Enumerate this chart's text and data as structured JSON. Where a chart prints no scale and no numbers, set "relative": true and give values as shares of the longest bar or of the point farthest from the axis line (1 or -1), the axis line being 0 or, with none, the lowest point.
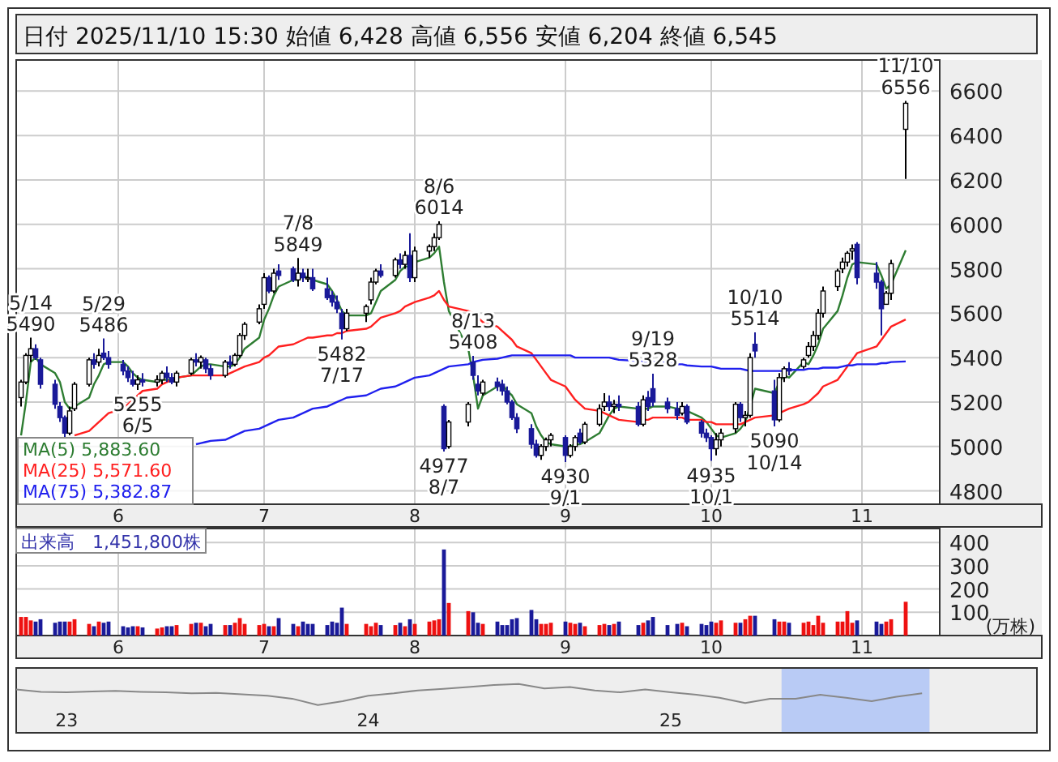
{
  "chart_data": [
    {
      "type": "candlestick",
      "title": "日付 2025/11/10 15:30 始値 6,428 高値 6,556 安値 6,204 終値 6,545",
      "x": [
        "2025-05-12",
        "2025-05-13",
        "2025-05-14",
        "2025-05-15",
        "2025-05-16",
        "2025-05-19",
        "2025-05-20",
        "2025-05-21",
        "2025-05-22",
        "2025-05-23",
        "2025-05-26",
        "2025-05-27",
        "2025-05-28",
        "2025-05-29",
        "2025-05-30",
        "2025-06-02",
        "2025-06-03",
        "2025-06-04",
        "2025-06-05",
        "2025-06-06",
        "2025-06-09",
        "2025-06-10",
        "2025-06-11",
        "2025-06-12",
        "2025-06-13",
        "2025-06-16",
        "2025-06-17",
        "2025-06-18",
        "2025-06-19",
        "2025-06-20",
        "2025-06-23",
        "2025-06-24",
        "2025-06-25",
        "2025-06-26",
        "2025-06-27",
        "2025-06-30",
        "2025-07-01",
        "2025-07-02",
        "2025-07-03",
        "2025-07-04",
        "2025-07-07",
        "2025-07-08",
        "2025-07-09",
        "2025-07-10",
        "2025-07-11",
        "2025-07-14",
        "2025-07-15",
        "2025-07-16",
        "2025-07-17",
        "2025-07-18",
        "2025-07-22",
        "2025-07-23",
        "2025-07-24",
        "2025-07-25",
        "2025-07-28",
        "2025-07-29",
        "2025-07-30",
        "2025-07-31",
        "2025-08-01",
        "2025-08-04",
        "2025-08-05",
        "2025-08-06",
        "2025-08-07",
        "2025-08-08",
        "2025-08-12",
        "2025-08-13",
        "2025-08-14",
        "2025-08-15",
        "2025-08-18",
        "2025-08-19",
        "2025-08-20",
        "2025-08-21",
        "2025-08-22",
        "2025-08-25",
        "2025-08-26",
        "2025-08-27",
        "2025-08-28",
        "2025-08-29",
        "2025-09-01",
        "2025-09-02",
        "2025-09-03",
        "2025-09-04",
        "2025-09-05",
        "2025-09-08",
        "2025-09-09",
        "2025-09-10",
        "2025-09-11",
        "2025-09-12",
        "2025-09-16",
        "2025-09-17",
        "2025-09-18",
        "2025-09-19",
        "2025-09-22",
        "2025-09-24",
        "2025-09-25",
        "2025-09-26",
        "2025-09-29",
        "2025-09-30",
        "2025-10-01",
        "2025-10-02",
        "2025-10-03",
        "2025-10-06",
        "2025-10-07",
        "2025-10-08",
        "2025-10-09",
        "2025-10-10",
        "2025-10-14",
        "2025-10-15",
        "2025-10-16",
        "2025-10-17",
        "2025-10-20",
        "2025-10-21",
        "2025-10-22",
        "2025-10-23",
        "2025-10-24",
        "2025-10-27",
        "2025-10-28",
        "2025-10-29",
        "2025-10-30",
        "2025-10-31",
        "2025-11-04",
        "2025-11-05",
        "2025-11-06",
        "2025-11-07",
        "2025-11-10"
      ],
      "ohlc": [
        [
          5220,
          5300,
          5180,
          5290
        ],
        [
          5290,
          5420,
          5280,
          5410
        ],
        [
          5410,
          5490,
          5380,
          5440
        ],
        [
          5440,
          5460,
          5390,
          5400
        ],
        [
          5390,
          5400,
          5260,
          5280
        ],
        [
          5280,
          5300,
          5170,
          5190
        ],
        [
          5180,
          5200,
          5110,
          5130
        ],
        [
          5130,
          5140,
          5040,
          5060
        ],
        [
          5060,
          5180,
          5050,
          5160
        ],
        [
          5170,
          5290,
          5160,
          5280
        ],
        [
          5280,
          5400,
          5270,
          5390
        ],
        [
          5390,
          5420,
          5350,
          5370
        ],
        [
          5380,
          5440,
          5360,
          5410
        ],
        [
          5420,
          5486,
          5390,
          5400
        ],
        [
          5400,
          5430,
          5350,
          5370
        ],
        [
          5370,
          5390,
          5320,
          5340
        ],
        [
          5340,
          5360,
          5290,
          5310
        ],
        [
          5300,
          5340,
          5270,
          5280
        ],
        [
          5280,
          5320,
          5255,
          5300
        ],
        [
          5300,
          5330,
          5270,
          5290
        ],
        [
          5290,
          5320,
          5270,
          5300
        ],
        [
          5300,
          5340,
          5280,
          5330
        ],
        [
          5330,
          5360,
          5290,
          5310
        ],
        [
          5310,
          5330,
          5280,
          5290
        ],
        [
          5290,
          5340,
          5270,
          5330
        ],
        [
          5330,
          5400,
          5320,
          5390
        ],
        [
          5390,
          5420,
          5360,
          5380
        ],
        [
          5380,
          5410,
          5350,
          5400
        ],
        [
          5390,
          5400,
          5330,
          5350
        ],
        [
          5350,
          5370,
          5300,
          5320
        ],
        [
          5320,
          5390,
          5310,
          5380
        ],
        [
          5380,
          5410,
          5350,
          5370
        ],
        [
          5370,
          5420,
          5360,
          5410
        ],
        [
          5410,
          5510,
          5400,
          5500
        ],
        [
          5500,
          5560,
          5480,
          5550
        ],
        [
          5560,
          5640,
          5550,
          5620
        ],
        [
          5640,
          5780,
          5620,
          5760
        ],
        [
          5760,
          5770,
          5690,
          5700
        ],
        [
          5700,
          5800,
          5690,
          5780
        ],
        [
          5790,
          5820,
          5750,
          5770
        ],
        [
          5800,
          5810,
          5740,
          5750
        ],
        [
          5750,
          5849,
          5720,
          5780
        ],
        [
          5780,
          5800,
          5740,
          5760
        ],
        [
          5760,
          5800,
          5740,
          5760
        ],
        [
          5760,
          5800,
          5700,
          5710
        ],
        [
          5710,
          5760,
          5660,
          5670
        ],
        [
          5680,
          5700,
          5630,
          5650
        ],
        [
          5650,
          5680,
          5600,
          5620
        ],
        [
          5600,
          5620,
          5482,
          5530
        ],
        [
          5530,
          5620,
          5520,
          5600
        ],
        [
          5600,
          5640,
          5560,
          5630
        ],
        [
          5660,
          5760,
          5640,
          5740
        ],
        [
          5740,
          5800,
          5730,
          5790
        ],
        [
          5790,
          5820,
          5760,
          5770
        ],
        [
          5770,
          5850,
          5760,
          5840
        ],
        [
          5840,
          5870,
          5800,
          5820
        ],
        [
          5820,
          5880,
          5800,
          5860
        ],
        [
          5860,
          5960,
          5740,
          5760
        ],
        [
          5760,
          5900,
          5740,
          5880
        ],
        [
          5880,
          5910,
          5850,
          5900
        ],
        [
          5900,
          5960,
          5880,
          5940
        ],
        [
          5940,
          6014,
          5930,
          6000
        ],
        [
          5180,
          5190,
          4977,
          4990
        ],
        [
          5000,
          5120,
          4990,
          5110
        ],
        [
          5110,
          5200,
          5090,
          5190
        ],
        [
          5380,
          5408,
          5300,
          5320
        ],
        [
          5280,
          5320,
          5230,
          5250
        ],
        [
          5240,
          5300,
          5230,
          5290
        ],
        [
          5290,
          5310,
          5250,
          5270
        ],
        [
          5280,
          5300,
          5230,
          5250
        ],
        [
          5250,
          5270,
          5190,
          5200
        ],
        [
          5200,
          5210,
          5120,
          5130
        ],
        [
          5130,
          5150,
          5060,
          5080
        ],
        [
          5080,
          5100,
          4990,
          5010
        ],
        [
          5010,
          5030,
          4950,
          4960
        ],
        [
          4960,
          5010,
          4940,
          5000
        ],
        [
          5000,
          5040,
          4980,
          5030
        ],
        [
          5030,
          5060,
          5000,
          5050
        ],
        [
          5040,
          5050,
          4930,
          4960
        ],
        [
          4960,
          5010,
          4950,
          5000
        ],
        [
          5000,
          5050,
          4980,
          5040
        ],
        [
          5060,
          5080,
          5010,
          5020
        ],
        [
          5020,
          5110,
          5010,
          5100
        ],
        [
          5100,
          5190,
          5090,
          5170
        ],
        [
          5180,
          5240,
          5160,
          5200
        ],
        [
          5200,
          5230,
          5160,
          5180
        ],
        [
          5180,
          5210,
          5150,
          5190
        ],
        [
          5190,
          5230,
          5160,
          5180
        ],
        [
          5180,
          5200,
          5090,
          5100
        ],
        [
          5100,
          5230,
          5090,
          5210
        ],
        [
          5220,
          5250,
          5160,
          5180
        ],
        [
          5260,
          5328,
          5180,
          5200
        ],
        [
          5200,
          5220,
          5150,
          5170
        ],
        [
          5170,
          5200,
          5120,
          5140
        ],
        [
          5150,
          5200,
          5140,
          5180
        ],
        [
          5180,
          5190,
          5100,
          5110
        ],
        [
          5110,
          5120,
          5040,
          5060
        ],
        [
          5060,
          5080,
          5020,
          5040
        ],
        [
          5040,
          5050,
          4935,
          4990
        ],
        [
          4990,
          5060,
          4960,
          5030
        ],
        [
          5030,
          5080,
          5000,
          5060
        ],
        [
          5080,
          5200,
          5060,
          5190
        ],
        [
          5190,
          5200,
          5110,
          5130
        ],
        [
          5130,
          5160,
          5090,
          5140
        ],
        [
          5140,
          5420,
          5130,
          5400
        ],
        [
          5460,
          5514,
          5400,
          5430
        ],
        [
          5250,
          5300,
          5090,
          5120
        ],
        [
          5120,
          5330,
          5110,
          5310
        ],
        [
          5310,
          5360,
          5290,
          5350
        ],
        [
          5350,
          5380,
          5320,
          5340
        ],
        [
          5360,
          5400,
          5350,
          5390
        ],
        [
          5410,
          5470,
          5400,
          5450
        ],
        [
          5450,
          5520,
          5430,
          5500
        ],
        [
          5500,
          5620,
          5480,
          5600
        ],
        [
          5600,
          5720,
          5580,
          5700
        ],
        [
          5720,
          5800,
          5700,
          5790
        ],
        [
          5800,
          5850,
          5780,
          5830
        ],
        [
          5830,
          5880,
          5810,
          5870
        ],
        [
          5880,
          5910,
          5840,
          5890
        ],
        [
          5910,
          5920,
          5730,
          5760
        ],
        [
          5780,
          5830,
          5710,
          5740
        ],
        [
          5740,
          5750,
          5500,
          5620
        ],
        [
          5640,
          5700,
          5640,
          5690
        ],
        [
          5690,
          5840,
          5660,
          5823
        ],
        [
          6428,
          6556,
          6204,
          6545
        ]
      ],
      "series": [
        {
          "name": "MA(5)  5,883.60",
          "type": "line",
          "color": "#2e7d32",
          "values": [
            5050,
            5200,
            5380,
            5400,
            5370,
            5330,
            5290,
            5200,
            5170,
            5180,
            5220,
            5280,
            5320,
            5370,
            5380,
            5380,
            5360,
            5330,
            5310,
            5300,
            5290,
            5300,
            5300,
            5300,
            5310,
            5320,
            5340,
            5360,
            5370,
            5370,
            5360,
            5360,
            5370,
            5400,
            5440,
            5490,
            5570,
            5620,
            5680,
            5720,
            5750,
            5750,
            5770,
            5760,
            5750,
            5730,
            5700,
            5660,
            5610,
            5590,
            5590,
            5600,
            5650,
            5700,
            5750,
            5790,
            5810,
            5810,
            5830,
            5850,
            5870,
            5900,
            5740,
            5610,
            5440,
            5320,
            5170,
            5230,
            5270,
            5280,
            5250,
            5230,
            5190,
            5150,
            5090,
            5050,
            5020,
            5010,
            5000,
            5000,
            5010,
            5010,
            5020,
            5060,
            5100,
            5140,
            5170,
            5180,
            5170,
            5170,
            5170,
            5180,
            5180,
            5170,
            5170,
            5160,
            5130,
            5110,
            5080,
            5050,
            5040,
            5060,
            5080,
            5110,
            5180,
            5260,
            5240,
            5290,
            5320,
            5310,
            5380,
            5370,
            5410,
            5460,
            5530,
            5610,
            5680,
            5760,
            5820,
            5830,
            5820,
            5770,
            5710,
            5730,
            5883.6
          ]
        },
        {
          "name": "MA(25)  5,571.60",
          "type": "line",
          "color": "#ff2020",
          "values": [
            null,
            null,
            null,
            null,
            null,
            null,
            null,
            null,
            null,
            5050,
            5070,
            5090,
            5110,
            5130,
            5150,
            5170,
            5190,
            5210,
            5230,
            5250,
            5260,
            5280,
            5290,
            5300,
            5310,
            5320,
            5320,
            5320,
            5320,
            5320,
            5320,
            5330,
            5340,
            5350,
            5360,
            5380,
            5400,
            5410,
            5430,
            5450,
            5460,
            5470,
            5480,
            5490,
            5490,
            5500,
            5500,
            5510,
            5510,
            5520,
            5530,
            5540,
            5560,
            5580,
            5600,
            5610,
            5630,
            5640,
            5650,
            5670,
            5680,
            5700,
            5660,
            5630,
            5610,
            5600,
            5580,
            5560,
            5540,
            5520,
            5500,
            5480,
            5450,
            5420,
            5390,
            5360,
            5330,
            5300,
            5270,
            5240,
            5210,
            5190,
            5170,
            5160,
            5150,
            5140,
            5130,
            5120,
            5110,
            5120,
            5120,
            5130,
            5130,
            5130,
            5130,
            5120,
            5120,
            5110,
            5110,
            5100,
            5100,
            5100,
            5100,
            5110,
            5120,
            5130,
            5140,
            5150,
            5160,
            5170,
            5190,
            5200,
            5220,
            5240,
            5270,
            5300,
            5330,
            5360,
            5390,
            5420,
            5450,
            5480,
            5510,
            5540,
            5571.6
          ]
        },
        {
          "name": "MA(75)  5,382.87",
          "type": "line",
          "color": "#2020ee",
          "values": [
            null,
            null,
            null,
            null,
            null,
            null,
            null,
            null,
            null,
            null,
            null,
            null,
            null,
            null,
            null,
            null,
            null,
            null,
            null,
            null,
            null,
            null,
            null,
            null,
            null,
            null,
            5010,
            5015,
            5020,
            5025,
            5030,
            5040,
            5050,
            5060,
            5070,
            5080,
            5090,
            5100,
            5110,
            5120,
            5130,
            5140,
            5150,
            5160,
            5170,
            5180,
            5190,
            5200,
            5210,
            5220,
            5230,
            5240,
            5250,
            5260,
            5270,
            5280,
            5290,
            5300,
            5310,
            5320,
            5330,
            5340,
            5350,
            5360,
            5370,
            5380,
            5385,
            5390,
            5395,
            5400,
            5405,
            5410,
            5410,
            5410,
            5410,
            5410,
            5410,
            5410,
            5410,
            5410,
            5400,
            5400,
            5400,
            5400,
            5400,
            5400,
            5395,
            5390,
            5385,
            5380,
            5380,
            5380,
            5375,
            5370,
            5370,
            5365,
            5360,
            5360,
            5360,
            5355,
            5350,
            5350,
            5350,
            5345,
            5340,
            5340,
            5340,
            5340,
            5340,
            5345,
            5345,
            5350,
            5350,
            5350,
            5355,
            5355,
            5360,
            5365,
            5365,
            5370,
            5370,
            5375,
            5375,
            5380,
            5382.87
          ]
        }
      ],
      "xlim": [
        "2025-05-11",
        "2025-11-17"
      ],
      "xticks": [
        {
          "value": "2025-06-01",
          "label": "6"
        },
        {
          "value": "2025-07-01",
          "label": "7"
        },
        {
          "value": "2025-08-01",
          "label": "8"
        },
        {
          "value": "2025-09-01",
          "label": "9"
        },
        {
          "value": "2025-10-01",
          "label": "10"
        },
        {
          "value": "2025-11-01",
          "label": "11"
        }
      ],
      "ylim": [
        4740,
        6740
      ],
      "yticks": [
        4800,
        5000,
        5200,
        5400,
        5600,
        5800,
        6000,
        6200,
        6400,
        6600
      ],
      "grid": true,
      "legend": "bottom left",
      "annotations": [
        {
          "text": "5/14\n5490",
          "x": "2025-05-14",
          "y": 5490
        },
        {
          "text": "5/29\n5486",
          "x": "2025-05-29",
          "y": 5486
        },
        {
          "text": "5255\n6/5",
          "x": "2025-06-05",
          "y": 5255
        },
        {
          "text": "7/8\n5849",
          "x": "2025-07-08",
          "y": 5849
        },
        {
          "text": "5482\n7/17",
          "x": "2025-07-17",
          "y": 5482
        },
        {
          "text": "8/6\n6014",
          "x": "2025-08-06",
          "y": 6014
        },
        {
          "text": "4977\n8/7",
          "x": "2025-08-07",
          "y": 4977
        },
        {
          "text": "8/13\n5408",
          "x": "2025-08-13",
          "y": 5408
        },
        {
          "text": "4930\n9/1",
          "x": "2025-09-01",
          "y": 4930
        },
        {
          "text": "9/19\n5328",
          "x": "2025-09-19",
          "y": 5328
        },
        {
          "text": "4935\n10/1",
          "x": "2025-10-01",
          "y": 4935
        },
        {
          "text": "10/10\n5514",
          "x": "2025-10-10",
          "y": 5514
        },
        {
          "text": "5090\n10/14",
          "x": "2025-10-14",
          "y": 5090
        },
        {
          "text": "11/10\n6556",
          "x": "2025-11-10",
          "y": 6556
        }
      ]
    },
    {
      "type": "bar",
      "title": "出来高　1,451,800株",
      "ylabel": "(万株)",
      "x": [
        "2025-05-12",
        "2025-05-13",
        "2025-05-14",
        "2025-05-15",
        "2025-05-16",
        "2025-05-19",
        "2025-05-20",
        "2025-05-21",
        "2025-05-22",
        "2025-05-23",
        "2025-05-26",
        "2025-05-27",
        "2025-05-28",
        "2025-05-29",
        "2025-05-30",
        "2025-06-02",
        "2025-06-03",
        "2025-06-04",
        "2025-06-05",
        "2025-06-06",
        "2025-06-09",
        "2025-06-10",
        "2025-06-11",
        "2025-06-12",
        "2025-06-13",
        "2025-06-16",
        "2025-06-17",
        "2025-06-18",
        "2025-06-19",
        "2025-06-20",
        "2025-06-23",
        "2025-06-24",
        "2025-06-25",
        "2025-06-26",
        "2025-06-27",
        "2025-06-30",
        "2025-07-01",
        "2025-07-02",
        "2025-07-03",
        "2025-07-04",
        "2025-07-07",
        "2025-07-08",
        "2025-07-09",
        "2025-07-10",
        "2025-07-11",
        "2025-07-14",
        "2025-07-15",
        "2025-07-16",
        "2025-07-17",
        "2025-07-18",
        "2025-07-22",
        "2025-07-23",
        "2025-07-24",
        "2025-07-25",
        "2025-07-28",
        "2025-07-29",
        "2025-07-30",
        "2025-07-31",
        "2025-08-01",
        "2025-08-04",
        "2025-08-05",
        "2025-08-06",
        "2025-08-07",
        "2025-08-08",
        "2025-08-12",
        "2025-08-13",
        "2025-08-14",
        "2025-08-15",
        "2025-08-18",
        "2025-08-19",
        "2025-08-20",
        "2025-08-21",
        "2025-08-22",
        "2025-08-25",
        "2025-08-26",
        "2025-08-27",
        "2025-08-28",
        "2025-08-29",
        "2025-09-01",
        "2025-09-02",
        "2025-09-03",
        "2025-09-04",
        "2025-09-05",
        "2025-09-08",
        "2025-09-09",
        "2025-09-10",
        "2025-09-11",
        "2025-09-12",
        "2025-09-16",
        "2025-09-17",
        "2025-09-18",
        "2025-09-19",
        "2025-09-22",
        "2025-09-24",
        "2025-09-25",
        "2025-09-26",
        "2025-09-29",
        "2025-09-30",
        "2025-10-01",
        "2025-10-02",
        "2025-10-03",
        "2025-10-06",
        "2025-10-07",
        "2025-10-08",
        "2025-10-09",
        "2025-10-10",
        "2025-10-14",
        "2025-10-15",
        "2025-10-16",
        "2025-10-17",
        "2025-10-20",
        "2025-10-21",
        "2025-10-22",
        "2025-10-23",
        "2025-10-24",
        "2025-10-27",
        "2025-10-28",
        "2025-10-29",
        "2025-10-30",
        "2025-10-31",
        "2025-11-04",
        "2025-11-05",
        "2025-11-06",
        "2025-11-07",
        "2025-11-10"
      ],
      "values": [
        80,
        80,
        65,
        60,
        70,
        55,
        60,
        60,
        60,
        70,
        50,
        40,
        60,
        55,
        60,
        40,
        35,
        40,
        40,
        35,
        30,
        35,
        40,
        40,
        45,
        50,
        55,
        55,
        40,
        50,
        45,
        45,
        55,
        75,
        50,
        45,
        50,
        40,
        40,
        75,
        50,
        40,
        60,
        50,
        50,
        45,
        60,
        55,
        120,
        50,
        50,
        40,
        55,
        45,
        45,
        55,
        40,
        70,
        50,
        60,
        65,
        70,
        370,
        140,
        105,
        100,
        55,
        50,
        60,
        45,
        45,
        70,
        75,
        110,
        70,
        50,
        50,
        55,
        60,
        55,
        50,
        55,
        40,
        45,
        50,
        45,
        50,
        60,
        45,
        55,
        65,
        80,
        45,
        50,
        55,
        40,
        50,
        45,
        60,
        55,
        65,
        55,
        55,
        70,
        85,
        85,
        70,
        60,
        60,
        55,
        55,
        60,
        45,
        85,
        55,
        60,
        60,
        105,
        55,
        65,
        60,
        50,
        60,
        70,
        145.18
      ],
      "colors": [
        "#ee1111",
        "#ee1111",
        "#ee1111",
        "#1a1a99",
        "#1a1a99",
        "#1a1a99",
        "#1a1a99",
        "#1a1a99",
        "#ee1111",
        "#ee1111",
        "#ee1111",
        "#1a1a99",
        "#ee1111",
        "#1a1a99",
        "#1a1a99",
        "#1a1a99",
        "#1a1a99",
        "#1a1a99",
        "#ee1111",
        "#1a1a99",
        "#ee1111",
        "#ee1111",
        "#1a1a99",
        "#1a1a99",
        "#ee1111",
        "#ee1111",
        "#1a1a99",
        "#ee1111",
        "#1a1a99",
        "#1a1a99",
        "#ee1111",
        "#1a1a99",
        "#ee1111",
        "#ee1111",
        "#ee1111",
        "#ee1111",
        "#ee1111",
        "#1a1a99",
        "#ee1111",
        "#1a1a99",
        "#1a1a99",
        "#ee1111",
        "#1a1a99",
        "#1a1a99",
        "#1a1a99",
        "#1a1a99",
        "#1a1a99",
        "#1a1a99",
        "#1a1a99",
        "#ee1111",
        "#ee1111",
        "#ee1111",
        "#ee1111",
        "#1a1a99",
        "#ee1111",
        "#1a1a99",
        "#ee1111",
        "#1a1a99",
        "#ee1111",
        "#ee1111",
        "#ee1111",
        "#ee1111",
        "#1a1a99",
        "#ee1111",
        "#ee1111",
        "#1a1a99",
        "#1a1a99",
        "#ee1111",
        "#1a1a99",
        "#1a1a99",
        "#1a1a99",
        "#1a1a99",
        "#1a1a99",
        "#1a1a99",
        "#1a1a99",
        "#ee1111",
        "#ee1111",
        "#ee1111",
        "#1a1a99",
        "#ee1111",
        "#ee1111",
        "#1a1a99",
        "#ee1111",
        "#ee1111",
        "#ee1111",
        "#1a1a99",
        "#ee1111",
        "#1a1a99",
        "#1a1a99",
        "#ee1111",
        "#1a1a99",
        "#1a1a99",
        "#1a1a99",
        "#1a1a99",
        "#ee1111",
        "#1a1a99",
        "#1a1a99",
        "#1a1a99",
        "#1a1a99",
        "#ee1111",
        "#ee1111",
        "#ee1111",
        "#1a1a99",
        "#ee1111",
        "#ee1111",
        "#1a1a99",
        "#1a1a99",
        "#ee1111",
        "#ee1111",
        "#1a1a99",
        "#ee1111",
        "#ee1111",
        "#ee1111",
        "#ee1111",
        "#ee1111",
        "#ee1111",
        "#ee1111",
        "#ee1111",
        "#ee1111",
        "#1a1a99",
        "#1a1a99",
        "#1a1a99",
        "#ee1111",
        "#ee1111",
        "#ee1111"
      ],
      "xlim": [
        "2025-05-11",
        "2025-11-17"
      ],
      "xticks": [
        {
          "value": "2025-06-01",
          "label": "6"
        },
        {
          "value": "2025-07-01",
          "label": "7"
        },
        {
          "value": "2025-08-01",
          "label": "8"
        },
        {
          "value": "2025-09-01",
          "label": "9"
        },
        {
          "value": "2025-10-01",
          "label": "10"
        },
        {
          "value": "2025-11-01",
          "label": "11"
        }
      ],
      "ylim": [
        0,
        460
      ],
      "yticks": [
        100,
        200,
        300,
        400
      ],
      "grid": true
    },
    {
      "type": "line",
      "relative": true,
      "x": [
        "2022-11",
        "2022-12",
        "2023-01",
        "2023-02",
        "2023-03",
        "2023-04",
        "2023-05",
        "2023-06",
        "2023-07",
        "2023-08",
        "2023-09",
        "2023-10",
        "2023-11",
        "2023-12",
        "2024-01",
        "2024-02",
        "2024-03",
        "2024-04",
        "2024-05",
        "2024-06",
        "2024-07",
        "2024-08",
        "2024-09",
        "2024-10",
        "2024-11",
        "2024-12",
        "2025-01",
        "2025-02",
        "2025-03",
        "2025-04",
        "2025-05",
        "2025-06",
        "2025-07",
        "2025-08",
        "2025-09",
        "2025-10",
        "2025-11"
      ],
      "values": [
        0.89,
        0.84,
        0.83,
        0.85,
        0.86,
        0.84,
        0.83,
        0.81,
        0.82,
        0.79,
        0.76,
        0.7,
        0.57,
        0.65,
        0.76,
        0.81,
        0.87,
        0.9,
        0.94,
        0.98,
        1,
        0.91,
        0.94,
        0.87,
        0.83,
        0.89,
        0.83,
        0.78,
        0.72,
        0.61,
        0.7,
        0.7,
        0.78,
        0.72,
        0.65,
        0.74,
        0.81
      ],
      "color": "#888888",
      "xlim": [
        "2022-11-01",
        "2026-03-20"
      ],
      "xticks": [
        {
          "value": "2023-01-01",
          "label": "23"
        },
        {
          "value": "2024-01-01",
          "label": "24"
        },
        {
          "value": "2025-01-01",
          "label": "25"
        }
      ],
      "bands": [
        {
          "axis": "x",
          "from": "2025-05-15",
          "to": "2025-11-10",
          "color": "#b3c6f5"
        }
      ]
    }
  ]
}
